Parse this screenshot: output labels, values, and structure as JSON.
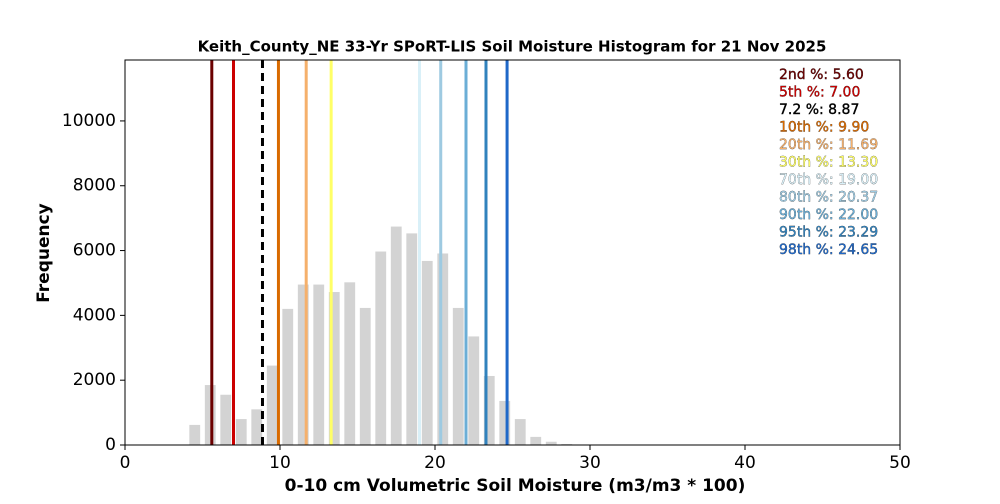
{
  "chart_data": {
    "type": "histogram",
    "title": "Keith_County_NE 33-Yr SPoRT-LIS Soil Moisture Histogram for 21 Nov 2025",
    "x_label": "0-10 cm Volumetric Soil Moisture (m3/m3 * 100)",
    "y_label": "Frequency",
    "bins": [
      4,
      5,
      6,
      7,
      8,
      9,
      10,
      11,
      12,
      13,
      14,
      15,
      16,
      17,
      18,
      19,
      20,
      21,
      22,
      23,
      24,
      25,
      26,
      27,
      28,
      29
    ],
    "values": [
      620,
      1850,
      1550,
      800,
      1100,
      2450,
      4200,
      4950,
      4950,
      4720,
      5020,
      4230,
      5970,
      6740,
      6530,
      5680,
      5910,
      4230,
      3350,
      2130,
      1360,
      800,
      250,
      100,
      30
    ],
    "color": "#d3d3d3",
    "xlim": [
      0,
      50
    ],
    "xticks": [
      0,
      10,
      20,
      30,
      40,
      50
    ],
    "ylim": [
      0,
      11880
    ],
    "yticks": [
      0,
      2000,
      4000,
      6000,
      8000,
      10000
    ],
    "lines": [
      {
        "value": 5.6,
        "label": "2nd %: 5.60",
        "color": "#6b0000"
      },
      {
        "value": 7.0,
        "label": "5th %: 7.00",
        "color": "#cc0000"
      },
      {
        "value": 8.87,
        "label": "7.2 %: 8.87",
        "color": "#000000",
        "dashed": true
      },
      {
        "value": 9.9,
        "label": "10th %: 9.90",
        "color": "#d96a00"
      },
      {
        "value": 11.69,
        "label": "20th %: 11.69",
        "color": "#f5b06b"
      },
      {
        "value": 13.3,
        "label": "30th %: 13.30",
        "color": "#ffff66"
      },
      {
        "value": 19.0,
        "label": "70th %: 19.00",
        "color": "#d9f0f8"
      },
      {
        "value": 20.37,
        "label": "80th %: 20.37",
        "color": "#9ecae1"
      },
      {
        "value": 22.0,
        "label": "90th %: 22.00",
        "color": "#6baed6"
      },
      {
        "value": 23.29,
        "label": "95th %: 23.29",
        "color": "#3182bd"
      },
      {
        "value": 24.65,
        "label": "98th %: 24.65",
        "color": "#1f68c8"
      }
    ]
  }
}
